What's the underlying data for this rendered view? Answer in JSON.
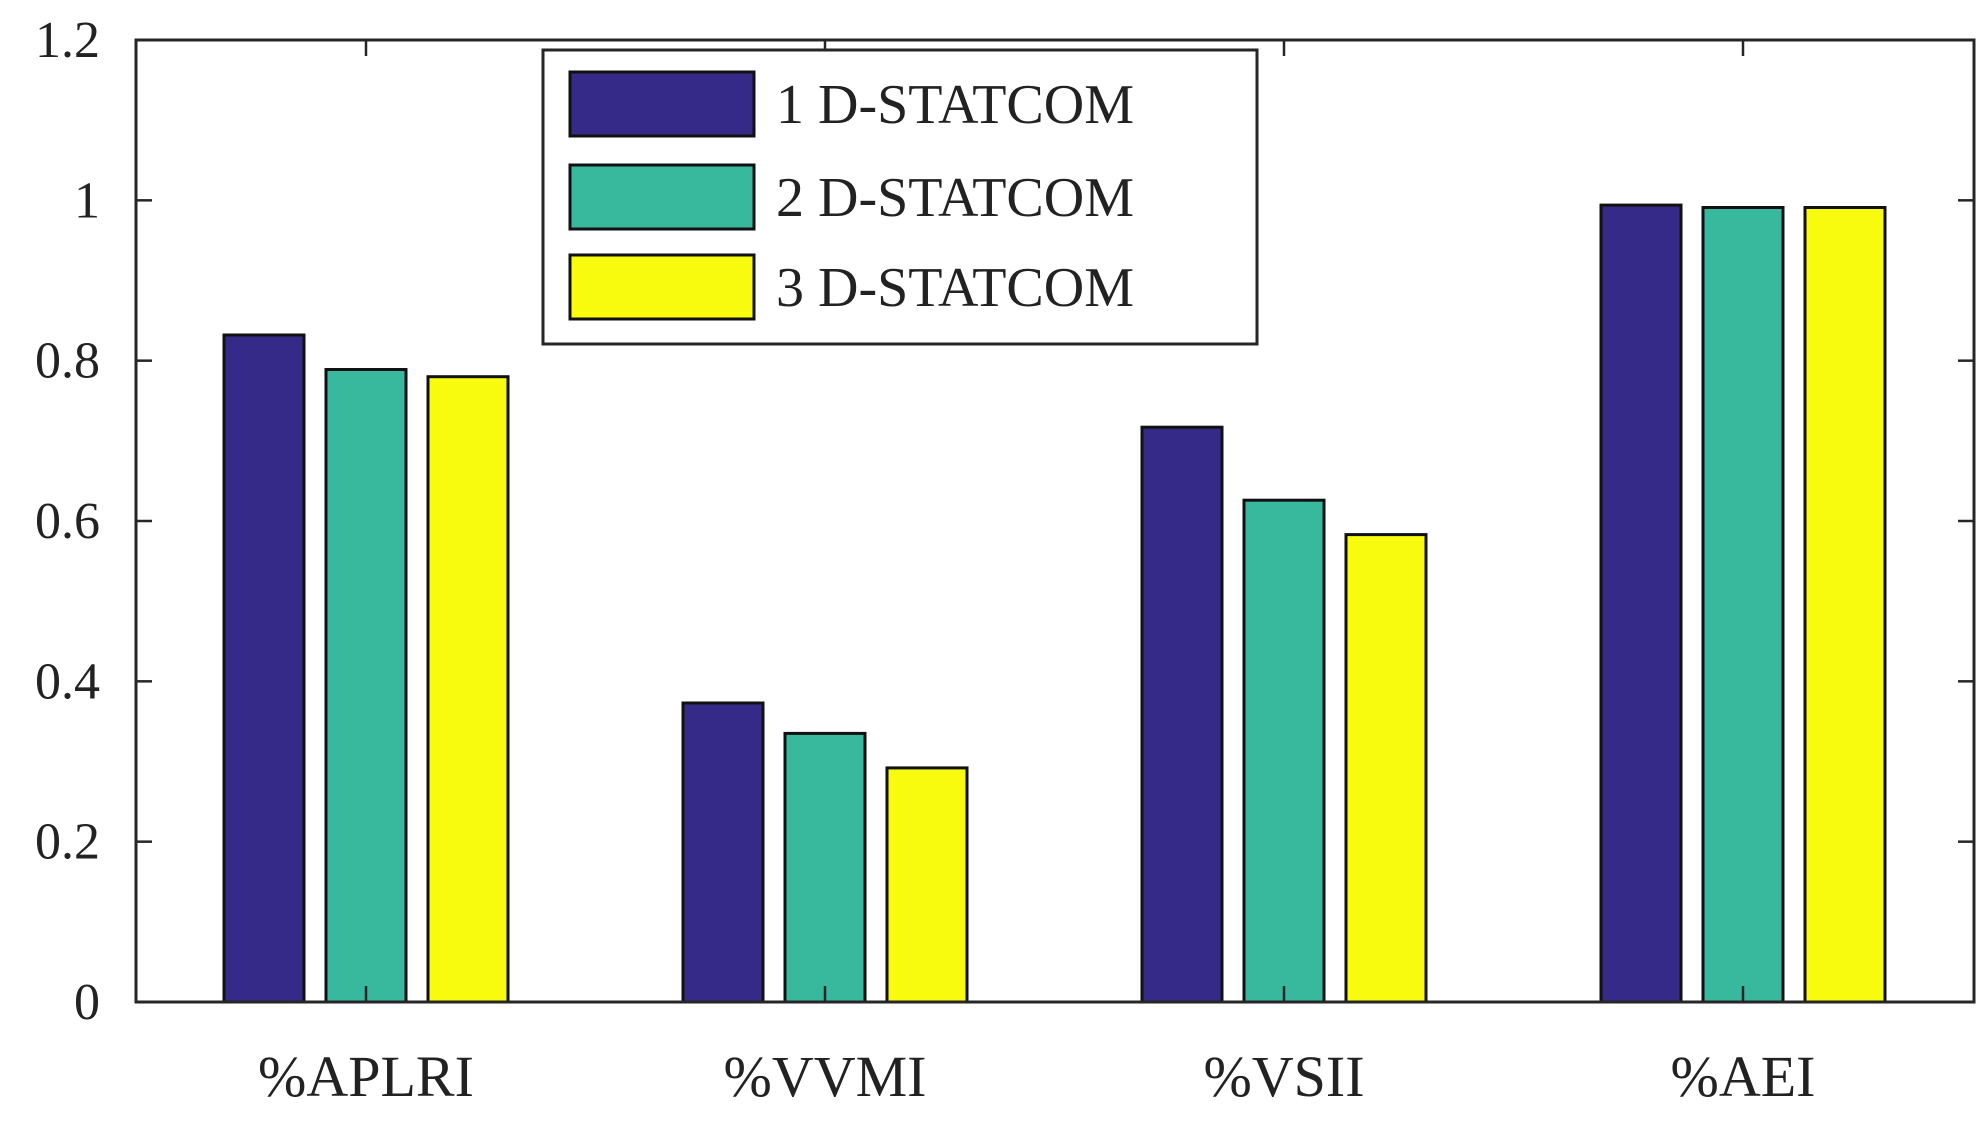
{
  "chart_data": {
    "type": "bar",
    "title": "",
    "xlabel": "",
    "ylabel": "",
    "categories": [
      "%APLRI",
      "%VVMI",
      "%VSII",
      "%AEI"
    ],
    "series": [
      {
        "name": "1 D-STATCOM",
        "color": "#352a87",
        "values": [
          0.832,
          0.373,
          0.717,
          0.994
        ]
      },
      {
        "name": "2 D-STATCOM",
        "color": "#38b99e",
        "values": [
          0.789,
          0.335,
          0.626,
          0.991
        ]
      },
      {
        "name": "3 D-STATCOM",
        "color": "#f9fb0e",
        "values": [
          0.78,
          0.292,
          0.583,
          0.991
        ]
      }
    ],
    "ylim": [
      0,
      1.2
    ],
    "yticks": [
      0,
      0.2,
      0.4,
      0.6,
      0.8,
      1,
      1.2
    ],
    "ytick_labels": [
      "0",
      "0.2",
      "0.4",
      "0.6",
      "0.8",
      "1",
      "1.2"
    ],
    "grid": false,
    "legend_position": "top-center"
  }
}
